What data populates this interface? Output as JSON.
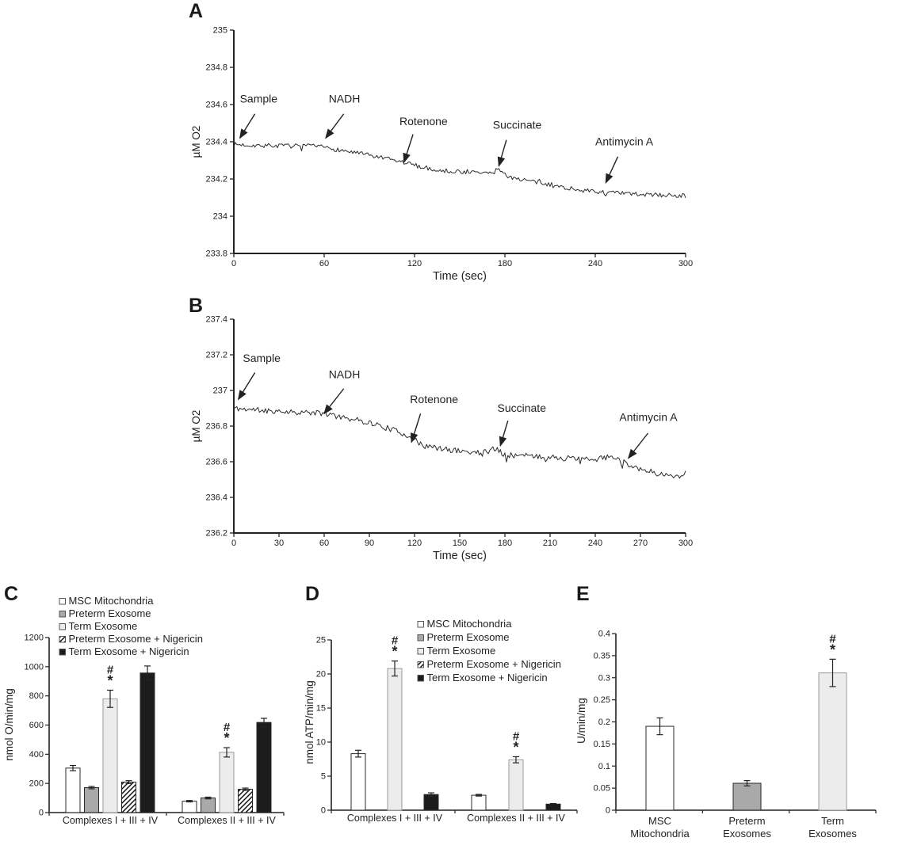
{
  "colors": {
    "ink": "#222222",
    "trace": "#2b2b2b",
    "bar_white": "#ffffff",
    "bar_gray": "#a9a9a9",
    "bar_light": "#ececec",
    "bar_black": "#1c1c1c"
  },
  "chart_data": [
    {
      "id": "a",
      "type": "line",
      "label": "A",
      "ylabel": "µM O2",
      "xlabel": "Time (sec)",
      "ymin": 233.8,
      "ymax": 235,
      "yticks": [
        "233.8",
        "234",
        "234.2",
        "234.4",
        "234.6",
        "234.8",
        "235"
      ],
      "xmin": 0,
      "xmax": 300,
      "xticks": [
        0,
        60,
        120,
        180,
        240,
        300
      ],
      "noise": 0.012,
      "keypoints": [
        [
          0,
          234.385
        ],
        [
          20,
          234.38
        ],
        [
          55,
          234.375
        ],
        [
          60,
          234.37
        ],
        [
          85,
          234.335
        ],
        [
          100,
          234.31
        ],
        [
          115,
          234.285
        ],
        [
          127,
          234.26
        ],
        [
          137,
          234.245
        ],
        [
          160,
          234.235
        ],
        [
          172,
          234.23
        ],
        [
          176,
          234.26
        ],
        [
          181,
          234.215
        ],
        [
          196,
          234.19
        ],
        [
          215,
          234.16
        ],
        [
          235,
          234.135
        ],
        [
          252,
          234.125
        ],
        [
          275,
          234.115
        ],
        [
          300,
          234.11
        ]
      ],
      "annotations": [
        {
          "label": "Sample",
          "lx": 4,
          "ly": 234.61,
          "x1": 14,
          "y1": 234.55,
          "x2": 4,
          "y2": 234.42
        },
        {
          "label": "NADH",
          "lx": 63,
          "ly": 234.61,
          "x1": 73,
          "y1": 234.55,
          "x2": 61,
          "y2": 234.42
        },
        {
          "label": "Rotenone",
          "lx": 110,
          "ly": 234.49,
          "x1": 119,
          "y1": 234.44,
          "x2": 113,
          "y2": 234.29
        },
        {
          "label": "Succinate",
          "lx": 172,
          "ly": 234.47,
          "x1": 181,
          "y1": 234.41,
          "x2": 176,
          "y2": 234.27
        },
        {
          "label": "Antimycin A",
          "lx": 240,
          "ly": 234.38,
          "x1": 255,
          "y1": 234.32,
          "x2": 247,
          "y2": 234.18
        }
      ]
    },
    {
      "id": "b",
      "type": "line",
      "label": "B",
      "ylabel": "µM O2",
      "xlabel": "Time (sec)",
      "ymin": 236.2,
      "ymax": 237.4,
      "yticks": [
        "236.2",
        "236.4",
        "236.6",
        "236.8",
        "237",
        "237.2",
        "237.4"
      ],
      "xmin": 0,
      "xmax": 300,
      "xticks": [
        0,
        30,
        60,
        90,
        120,
        150,
        180,
        210,
        240,
        270,
        300
      ],
      "noise": 0.016,
      "keypoints": [
        [
          0,
          236.9
        ],
        [
          15,
          236.89
        ],
        [
          40,
          236.88
        ],
        [
          60,
          236.87
        ],
        [
          75,
          236.845
        ],
        [
          90,
          236.82
        ],
        [
          105,
          236.78
        ],
        [
          118,
          236.74
        ],
        [
          123,
          236.7
        ],
        [
          135,
          236.675
        ],
        [
          150,
          236.66
        ],
        [
          165,
          236.65
        ],
        [
          174,
          236.675
        ],
        [
          180,
          236.64
        ],
        [
          200,
          236.63
        ],
        [
          220,
          236.62
        ],
        [
          240,
          236.61
        ],
        [
          251,
          236.635
        ],
        [
          258,
          236.6
        ],
        [
          270,
          236.56
        ],
        [
          281,
          236.535
        ],
        [
          290,
          236.52
        ],
        [
          300,
          236.525
        ]
      ],
      "annotations": [
        {
          "label": "Sample",
          "lx": 6,
          "ly": 237.16,
          "x1": 14,
          "y1": 237.1,
          "x2": 3,
          "y2": 236.95
        },
        {
          "label": "NADH",
          "lx": 63,
          "ly": 237.07,
          "x1": 73,
          "y1": 237.01,
          "x2": 60,
          "y2": 236.87
        },
        {
          "label": "Rotenone",
          "lx": 117,
          "ly": 236.93,
          "x1": 124,
          "y1": 236.87,
          "x2": 118,
          "y2": 236.71
        },
        {
          "label": "Succinate",
          "lx": 175,
          "ly": 236.88,
          "x1": 182,
          "y1": 236.83,
          "x2": 177,
          "y2": 236.69
        },
        {
          "label": "Antimycin A",
          "lx": 256,
          "ly": 236.83,
          "x1": 275,
          "y1": 236.76,
          "x2": 262,
          "y2": 236.62
        }
      ]
    },
    {
      "id": "c",
      "type": "bar",
      "label": "C",
      "ylabel": "nmol O/min/mg",
      "ymax": 1200,
      "yticks": [
        "0",
        "200",
        "400",
        "600",
        "800",
        "1000",
        "1200"
      ],
      "categories": [
        "Complexes I + III + IV",
        "Complexes II + III + IV"
      ],
      "series": [
        {
          "name": "MSC Mitochondria",
          "style": "white",
          "values": [
            305,
            78
          ],
          "errors": [
            18,
            5
          ]
        },
        {
          "name": "Preterm Exosome",
          "style": "gray",
          "values": [
            171,
            100
          ],
          "errors": [
            8,
            6
          ]
        },
        {
          "name": "Term Exosome",
          "style": "light",
          "values": [
            780,
            413
          ],
          "errors": [
            59,
            32
          ],
          "sig": [
            "#",
            "*"
          ]
        },
        {
          "name": "Preterm Exosome + Nigericin",
          "style": "hatch",
          "values": [
            209,
            160
          ],
          "errors": [
            10,
            8
          ]
        },
        {
          "name": "Term Exosome  + Nigericin",
          "style": "black",
          "values": [
            957,
            618
          ],
          "errors": [
            48,
            28
          ]
        }
      ]
    },
    {
      "id": "d",
      "type": "bar",
      "label": "D",
      "ylabel": "nmol ATP/min/mg",
      "ymax": 25,
      "yticks": [
        "0",
        "5",
        "10",
        "15",
        "20",
        "25"
      ],
      "categories": [
        "Complexes I + III + IV",
        "Complexes II + III + IV"
      ],
      "series": [
        {
          "name": "MSC Mitochondria",
          "style": "white",
          "values": [
            8.3,
            2.2
          ],
          "errors": [
            0.5,
            0.12
          ]
        },
        {
          "name": "Preterm Exosome",
          "style": "gray",
          "values": [
            0,
            0
          ],
          "errors": [
            0,
            0
          ]
        },
        {
          "name": "Term Exosome",
          "style": "light",
          "values": [
            20.8,
            7.4
          ],
          "errors": [
            1.1,
            0.45
          ],
          "sig": [
            "#",
            "*"
          ]
        },
        {
          "name": "Preterm Exosome + Nigericin",
          "style": "hatch",
          "values": [
            0,
            0
          ],
          "errors": [
            0,
            0
          ]
        },
        {
          "name": "Term Exosome  + Nigericin",
          "style": "black",
          "values": [
            2.3,
            0.9
          ],
          "errors": [
            0.25,
            0.08
          ]
        }
      ]
    },
    {
      "id": "e",
      "type": "bar",
      "label": "E",
      "ylabel": "U/min/mg",
      "ymax": 0.4,
      "yticks": [
        "0",
        "0.05",
        "0.1",
        "0.15",
        "0.2",
        "0.25",
        "0.3",
        "0.35",
        "0.4"
      ],
      "bars": [
        {
          "label": [
            "MSC",
            "Mitochondria"
          ],
          "style": "white",
          "value": 0.19,
          "error": 0.019
        },
        {
          "label": [
            "Preterm",
            "Exosomes"
          ],
          "style": "gray",
          "value": 0.061,
          "error": 0.006
        },
        {
          "label": [
            "Term",
            "Exosomes"
          ],
          "style": "light",
          "value": 0.311,
          "error": 0.031,
          "sig": [
            "#",
            "*"
          ]
        }
      ]
    }
  ]
}
